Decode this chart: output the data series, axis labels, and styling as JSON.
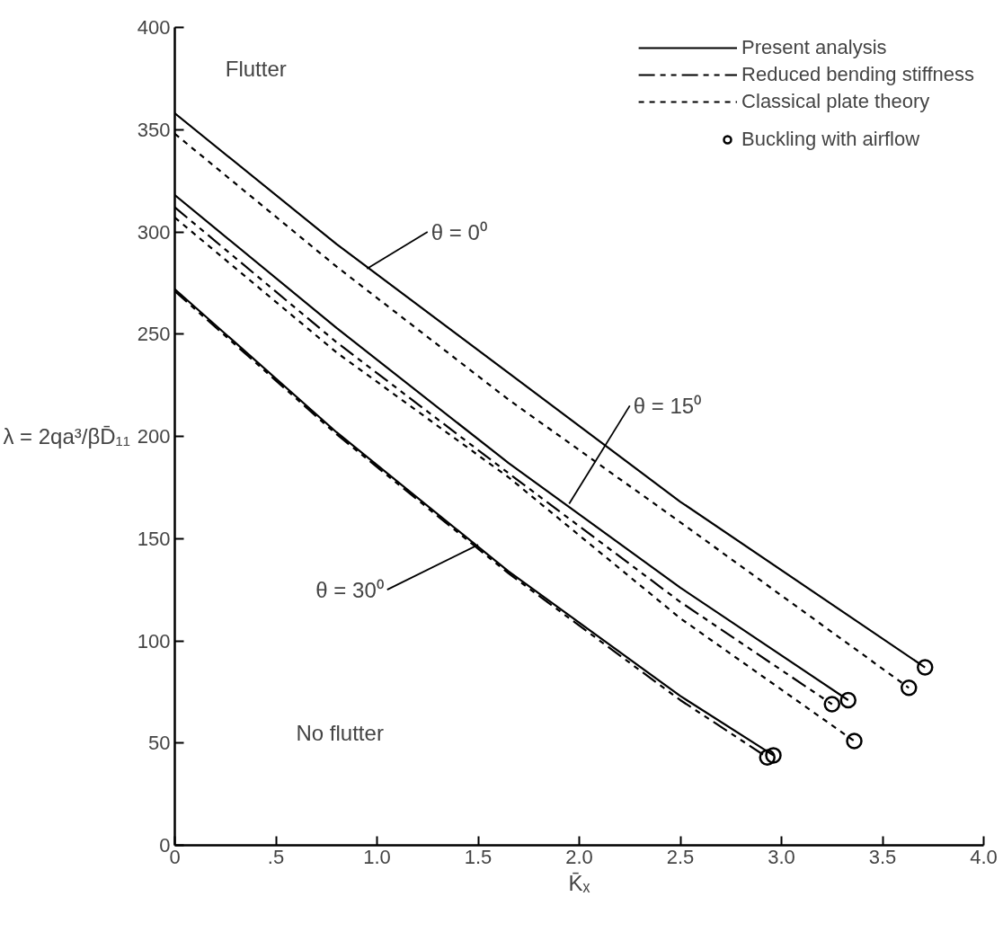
{
  "chart_data": {
    "type": "line",
    "xlabel": "K̄ₓ",
    "ylabel": "λ = 2qa³/βD̄₁₁",
    "xlim": [
      0,
      4
    ],
    "ylim": [
      0,
      400
    ],
    "xticks": [
      0,
      {
        "value": 0.5,
        "label": ".5"
      },
      {
        "value": 1,
        "label": "1.0"
      },
      {
        "value": 1.5,
        "label": "1.5"
      },
      {
        "value": 2,
        "label": "2.0"
      },
      {
        "value": 2.5,
        "label": "2.5"
      },
      {
        "value": 3,
        "label": "3.0"
      },
      {
        "value": 3.5,
        "label": "3.5"
      },
      {
        "value": 4,
        "label": "4.0"
      }
    ],
    "yticks": [
      0,
      50,
      100,
      150,
      200,
      250,
      300,
      350,
      400
    ],
    "grid": false,
    "legend": "top right",
    "series": [
      {
        "name": "Present analysis",
        "line_style": "solid",
        "color": "#000000",
        "x": [
          0,
          0.8,
          1.65,
          2.5,
          3.71
        ],
        "values": [
          358,
          294,
          231,
          168,
          87
        ]
      },
      {
        "name": "Reduced bending stiffness",
        "line_style": "dashdot",
        "color": "#000000",
        "x": [
          0,
          0.8,
          1.65,
          2.5,
          3.25
        ],
        "values": [
          312,
          246,
          182,
          119,
          69
        ]
      },
      {
        "name": "Classical plate theory",
        "line_style": "dashed",
        "color": "#000000",
        "x": [
          0,
          0.8,
          1.65,
          2.5,
          3.63
        ],
        "values": [
          348,
          283,
          218,
          158,
          77
        ]
      },
      {
        "name": "Buckling with airflow",
        "type": "scatter",
        "marker": "circle",
        "color": "#000000",
        "x": [
          3.71,
          3.63,
          3.33,
          3.25,
          3.36,
          2.96,
          2.93
        ],
        "values": [
          87,
          77,
          71,
          69,
          51,
          44,
          43
        ]
      },
      {
        "line_style": "solid",
        "color": "#000000",
        "x": [
          0,
          0.8,
          1.65,
          2.5,
          3.33
        ],
        "values": [
          318,
          253,
          187,
          126,
          71
        ]
      },
      {
        "line_style": "dashed",
        "color": "#000000",
        "x": [
          0,
          0.8,
          1.65,
          2.5,
          3.36
        ],
        "values": [
          307,
          241,
          180,
          111,
          51
        ]
      },
      {
        "line_style": "solid",
        "color": "#000000",
        "x": [
          0,
          0.8,
          1.65,
          2.5,
          2.96
        ],
        "values": [
          272,
          202,
          134,
          73,
          44
        ]
      },
      {
        "line_style": "dashdot",
        "color": "#000000",
        "x": [
          0,
          0.8,
          1.65,
          2.5,
          2.93
        ],
        "values": [
          271,
          201,
          133,
          71,
          43
        ]
      }
    ],
    "annotations": [
      "Flutter",
      "No flutter",
      {
        "text": "θ = 0⁰",
        "x": 0.95,
        "y": 282
      },
      {
        "text": "θ = 15⁰",
        "x": 1.95,
        "y": 167
      },
      {
        "text": "θ = 30⁰",
        "x": 1.5,
        "y": 147
      }
    ]
  }
}
